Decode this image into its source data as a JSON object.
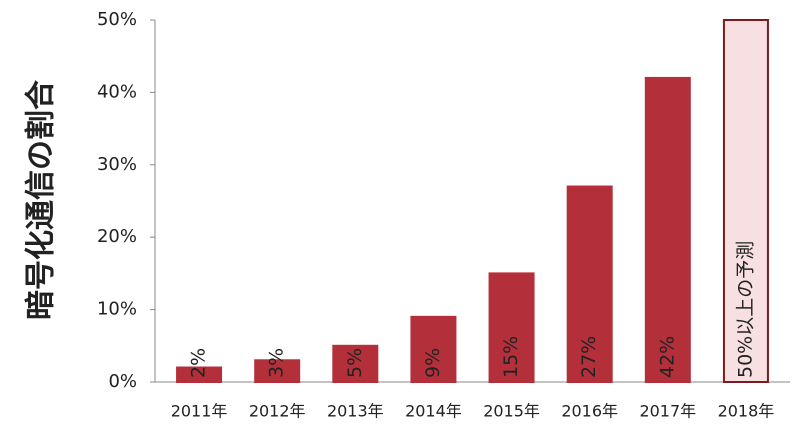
{
  "chart_data": {
    "type": "bar",
    "y_label": "暗号化通信の割合",
    "categories": [
      "2011年",
      "2012年",
      "2013年",
      "2014年",
      "2015年",
      "2016年",
      "2017年",
      "2018年"
    ],
    "values": [
      2,
      3,
      5,
      9,
      15,
      27,
      42,
      50
    ],
    "value_labels": [
      "2%",
      "3%",
      "5%",
      "9%",
      "15%",
      "27%",
      "42%",
      "50%以上の予測"
    ],
    "colors": [
      "#b3303a",
      "#b3303a",
      "#b3303a",
      "#b3303a",
      "#b3303a",
      "#b3303a",
      "#b3303a",
      "#f7dfe2"
    ],
    "edgecolors": [
      "#b3303a",
      "#b3303a",
      "#b3303a",
      "#b3303a",
      "#b3303a",
      "#b3303a",
      "#b3303a",
      "#7a1a22"
    ],
    "ylim": [
      0,
      50
    ],
    "yticks": [
      {
        "value": 0,
        "label": "0%"
      },
      {
        "value": 10,
        "label": "10%"
      },
      {
        "value": 20,
        "label": "20%"
      },
      {
        "value": 30,
        "label": "30%"
      },
      {
        "value": 40,
        "label": "40%"
      },
      {
        "value": 50,
        "label": "50%"
      }
    ],
    "grid": false
  }
}
